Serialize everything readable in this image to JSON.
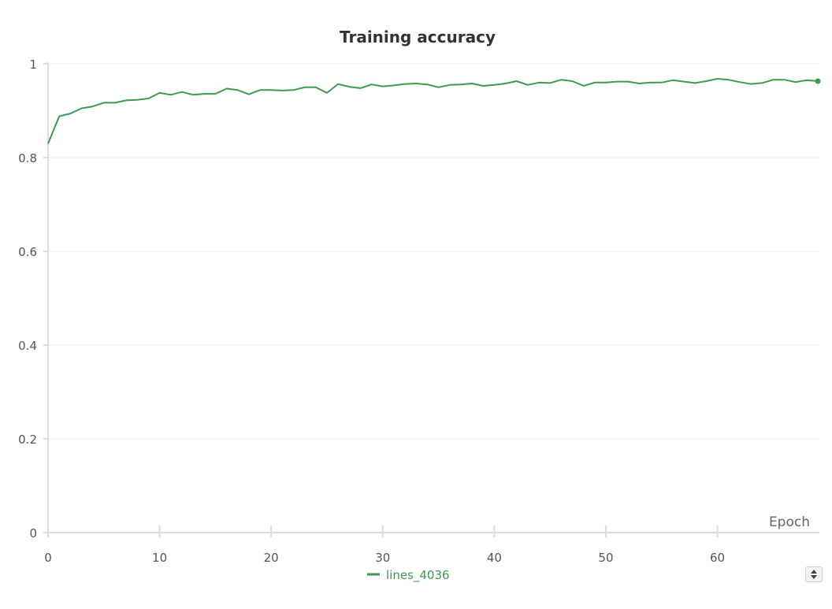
{
  "chart_data": {
    "type": "line",
    "title": "Training accuracy",
    "xlabel": "Epoch",
    "ylabel": "",
    "xlim": [
      0,
      69
    ],
    "ylim": [
      0,
      1
    ],
    "x_ticks": [
      0,
      10,
      20,
      30,
      40,
      50,
      60
    ],
    "y_ticks": [
      0,
      0.2,
      0.4,
      0.6,
      0.8,
      1
    ],
    "x_tick_labels": [
      "0",
      "10",
      "20",
      "30",
      "40",
      "50",
      "60"
    ],
    "y_tick_labels": [
      "0",
      "0.2",
      "0.4",
      "0.6",
      "0.8",
      "1"
    ],
    "grid": "horizontal",
    "legend_position": "bottom-center",
    "series": [
      {
        "name": "lines_4036",
        "color": "#3d9a50",
        "x": [
          0,
          1,
          2,
          3,
          4,
          5,
          6,
          7,
          8,
          9,
          10,
          11,
          12,
          13,
          14,
          15,
          16,
          17,
          18,
          19,
          20,
          21,
          22,
          23,
          24,
          25,
          26,
          27,
          28,
          29,
          30,
          31,
          32,
          33,
          34,
          35,
          36,
          37,
          38,
          39,
          40,
          41,
          42,
          43,
          44,
          45,
          46,
          47,
          48,
          49,
          50,
          51,
          52,
          53,
          54,
          55,
          56,
          57,
          58,
          59,
          60,
          61,
          62,
          63,
          64,
          65,
          66,
          67,
          68,
          69
        ],
        "values": [
          0.83,
          0.888,
          0.894,
          0.905,
          0.909,
          0.917,
          0.917,
          0.922,
          0.923,
          0.926,
          0.938,
          0.934,
          0.94,
          0.934,
          0.936,
          0.936,
          0.947,
          0.944,
          0.935,
          0.944,
          0.944,
          0.943,
          0.944,
          0.95,
          0.95,
          0.938,
          0.957,
          0.951,
          0.948,
          0.956,
          0.952,
          0.954,
          0.957,
          0.958,
          0.956,
          0.95,
          0.955,
          0.956,
          0.958,
          0.953,
          0.955,
          0.958,
          0.963,
          0.955,
          0.96,
          0.959,
          0.966,
          0.963,
          0.953,
          0.96,
          0.96,
          0.962,
          0.962,
          0.958,
          0.96,
          0.96,
          0.965,
          0.962,
          0.959,
          0.963,
          0.968,
          0.966,
          0.961,
          0.957,
          0.959,
          0.966,
          0.966,
          0.961,
          0.965,
          0.963
        ]
      }
    ]
  },
  "legend_scroll_icon": "up-down-arrows-icon"
}
